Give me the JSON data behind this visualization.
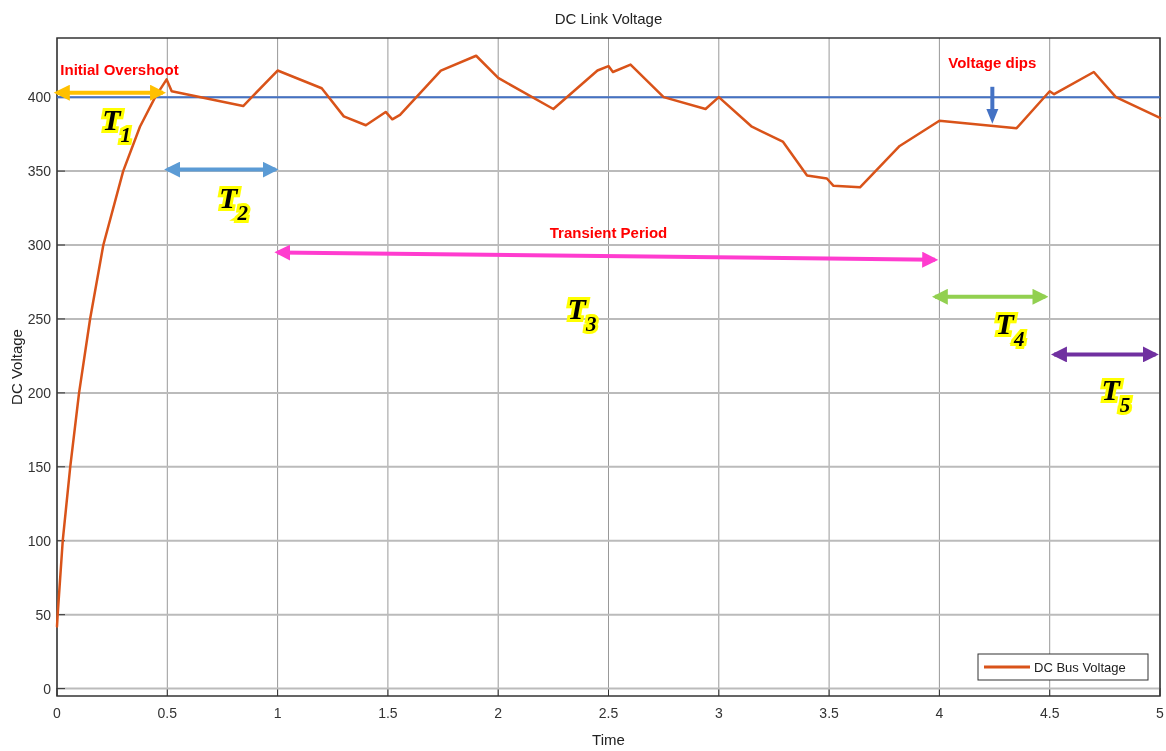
{
  "chart_data": {
    "type": "line",
    "title": "DC Link Voltage",
    "xlabel": "Time",
    "ylabel": "DC Voltage",
    "xlim": [
      0,
      5
    ],
    "ylim": [
      -5,
      440
    ],
    "xticks": [
      0,
      0.5,
      1,
      1.5,
      2,
      2.5,
      3,
      3.5,
      4,
      4.5,
      5
    ],
    "yticks": [
      0,
      50,
      100,
      150,
      200,
      250,
      300,
      350,
      400
    ],
    "grid": true,
    "legend": "bottom right",
    "series": [
      {
        "name": "DC Bus Voltage",
        "color": "#d95319",
        "x": [
          0,
          0.003,
          0.026,
          0.06,
          0.1,
          0.15,
          0.21,
          0.3,
          0.376,
          0.445,
          0.497,
          0.52,
          0.844,
          1.0,
          1.2,
          1.3,
          1.4,
          1.49,
          1.52,
          1.555,
          1.74,
          1.9,
          2.0,
          2.25,
          2.45,
          2.5,
          2.52,
          2.6,
          2.75,
          2.94,
          3.0,
          3.15,
          3.29,
          3.4,
          3.49,
          3.52,
          3.64,
          3.82,
          4.0,
          4.35,
          4.5,
          4.52,
          4.7,
          4.8,
          5.0
        ],
        "values": [
          42,
          50,
          100,
          150,
          200,
          250,
          300,
          350,
          380,
          400,
          412,
          404,
          394,
          418,
          406,
          387,
          381,
          390,
          385,
          388,
          418,
          428,
          413,
          392,
          418,
          421,
          417,
          422,
          400,
          392,
          400,
          380,
          370,
          347,
          345,
          340,
          339,
          367,
          384,
          379,
          404,
          402,
          417,
          400,
          386
        ]
      }
    ],
    "ref_lines": [
      {
        "axis": "y",
        "value": 400,
        "color": "#4472c4"
      }
    ],
    "annotations": [
      "Initial Overshoot",
      "Voltage dips",
      "Transient Period",
      "T$_{1}$",
      "T$_{2}$",
      "T$_{3}$",
      "T$_{4}$",
      "T$_{5}$"
    ]
  }
}
